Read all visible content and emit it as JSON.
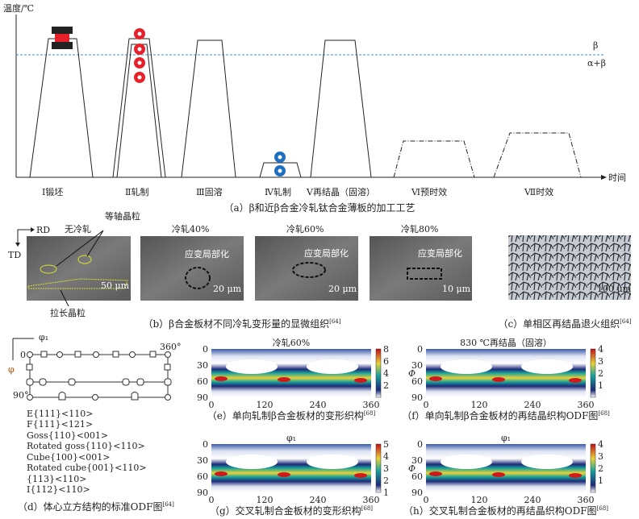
{
  "panel_a": {
    "y_label": "温度/℃",
    "x_label": "时间",
    "beta": "β",
    "alpha_beta": "α+β",
    "stages": [
      "Ⅰ锻坯",
      "Ⅱ轧制",
      "Ⅲ固溶",
      "Ⅳ轧制",
      "Ⅴ再结晶（固溶）",
      "Ⅵ预时效",
      "Ⅶ时效"
    ],
    "caption": "（a）β和近β合金冷轧钛合金薄板的加工工艺",
    "colors": {
      "beta_line": "#3a8fd0",
      "forge_block": "#222222",
      "forge_hot": "#e8202a",
      "roll_red": "#e8202a",
      "roll_blue": "#1f6fc0"
    }
  },
  "panel_b": {
    "rd": "RD",
    "td": "TD",
    "titles": [
      "无冷轧",
      "冷轧40%",
      "冷轧60%",
      "冷轧80%"
    ],
    "equiaxed": "等轴晶粒",
    "elongated": "拉长晶粒",
    "strain": "应变局部化",
    "scales": [
      "50 μm",
      "20 μm",
      "20 μm",
      "10 μm"
    ],
    "caption": "（b）β合金板材不同冷轧变形量的显微组织",
    "ref": "[64]"
  },
  "panel_c": {
    "scale": "100 μm",
    "caption": "（c）单相区再结晶退火组织",
    "ref": "[64]"
  },
  "panel_d": {
    "phi1": "φ₁",
    "phi": "φ",
    "zero": "0",
    "deg360": "360°",
    "deg90": "90°",
    "legend": [
      "E{111}<110>",
      "F{111}<121>",
      "Goss{110}<001>",
      "Rotated goss{110}<110>",
      "Cube{100}<001>",
      "Rotated cube{001}<110>",
      "{113}<110>",
      "I{112}<110>"
    ],
    "caption": "（d）体心立方结构的标准ODF图",
    "ref": "[64]"
  },
  "chart_data": [
    {
      "type": "heatmap",
      "title": "冷轧60%",
      "ylabel": "",
      "xticks": [
        "0",
        "120",
        "240",
        "360"
      ],
      "yticks": [
        "0",
        "30",
        "60",
        "90"
      ],
      "xlim": [
        0,
        360
      ],
      "ylim": [
        0,
        90
      ],
      "colorbar": [
        "8",
        "6",
        "4",
        "2"
      ],
      "clim": [
        0,
        8
      ],
      "caption": "（e）单向轧制β合金板材的变形织构",
      "ref": "[68]"
    },
    {
      "type": "heatmap",
      "title": "830 ℃再结晶（固溶）",
      "ylabel": "Φ",
      "xticks": [
        "0",
        "120",
        "240",
        "360"
      ],
      "yticks": [
        "0",
        "30",
        "60",
        "90"
      ],
      "xlim": [
        0,
        360
      ],
      "ylim": [
        0,
        90
      ],
      "colorbar": [
        "4",
        "3",
        "2",
        "1"
      ],
      "clim": [
        0,
        4
      ],
      "caption": "（f）单向轧制β合金板材的再结晶织构ODF图",
      "ref": "[68]"
    },
    {
      "type": "heatmap",
      "title": "φ₁",
      "ylabel": "",
      "xticks": [
        "0",
        "120",
        "240",
        "360"
      ],
      "yticks": [
        "0",
        "30",
        "60",
        "90"
      ],
      "xlim": [
        0,
        360
      ],
      "ylim": [
        0,
        90
      ],
      "colorbar": [
        "5",
        "4",
        "3",
        "2",
        "1"
      ],
      "clim": [
        1,
        5
      ],
      "caption": "（g）交叉轧制合金板材的变形织构",
      "ref": "[68]"
    },
    {
      "type": "heatmap",
      "title": "φ₁",
      "ylabel": "Φ",
      "xticks": [
        "0",
        "120",
        "240",
        "360"
      ],
      "yticks": [
        "0",
        "30",
        "60",
        "90"
      ],
      "xlim": [
        0,
        360
      ],
      "ylim": [
        0,
        90
      ],
      "colorbar": [
        "4",
        "3",
        "2",
        "1"
      ],
      "clim": [
        0,
        4
      ],
      "caption": "（h）交叉轧制合金板材的再结晶织构ODF图",
      "ref": "[68]"
    }
  ]
}
